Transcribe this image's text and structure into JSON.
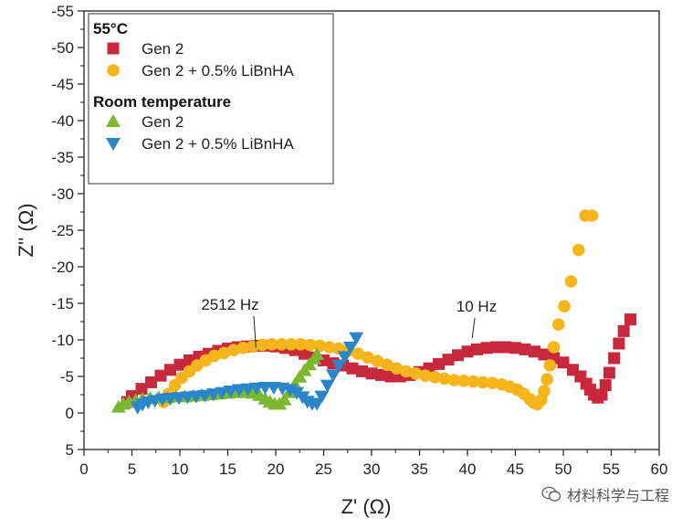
{
  "chart_data": {
    "type": "scatter",
    "xlabel": "Z' (Ω)",
    "ylabel": "Z'' (Ω)",
    "xlim": [
      0,
      60
    ],
    "ylim": [
      5,
      -55
    ],
    "xticks": [
      0,
      5,
      10,
      15,
      20,
      25,
      30,
      35,
      40,
      45,
      50,
      55,
      60
    ],
    "yticks": [
      5,
      0,
      -5,
      -10,
      -15,
      -20,
      -25,
      -30,
      -35,
      -40,
      -45,
      -50,
      -55
    ],
    "legend": {
      "groups": [
        {
          "title": "55°C",
          "entries": [
            {
              "series": 0,
              "label": "Gen 2"
            },
            {
              "series": 1,
              "label": "Gen 2 + 0.5% LiBnHA"
            }
          ]
        },
        {
          "title": "Room temperature",
          "entries": [
            {
              "series": 2,
              "label": "Gen 2"
            },
            {
              "series": 3,
              "label": "Gen 2 + 0.5% LiBnHA"
            }
          ]
        }
      ],
      "placement": "top-left"
    },
    "annotations": [
      {
        "text": "2512 Hz",
        "x": 18.5,
        "y": -9.2
      },
      {
        "text": "10 Hz",
        "x": 40.5,
        "y": -10.0
      }
    ],
    "series": [
      {
        "name": "Gen 2 (55°C)",
        "marker": "square",
        "color": "#c8283c",
        "x": [
          4.5,
          5.0,
          6.0,
          7.0,
          8.0,
          9.0,
          10.0,
          11.0,
          12.0,
          13.0,
          14.0,
          15.0,
          16.0,
          17.0,
          18.0,
          19.0,
          20.0,
          21.0,
          22.0,
          23.0,
          24.0,
          25.0,
          26.0,
          27.0,
          28.0,
          29.0,
          30.0,
          31.0,
          32.0,
          33.0,
          34.0,
          35.0,
          36.0,
          37.0,
          38.0,
          39.0,
          40.0,
          41.0,
          42.0,
          43.0,
          44.0,
          45.0,
          46.0,
          47.0,
          48.0,
          49.0,
          50.0,
          51.0,
          51.8,
          52.4,
          52.8,
          53.2,
          53.6,
          54.0,
          54.4,
          54.8,
          55.3,
          55.8,
          56.3,
          57.0
        ],
        "y": [
          -1.5,
          -2.3,
          -3.3,
          -4.2,
          -5.1,
          -5.9,
          -6.6,
          -7.2,
          -7.7,
          -8.1,
          -8.5,
          -8.8,
          -9.0,
          -9.1,
          -9.2,
          -9.2,
          -9.1,
          -8.9,
          -8.6,
          -8.1,
          -7.6,
          -7.2,
          -6.8,
          -6.5,
          -6.1,
          -5.7,
          -5.4,
          -5.2,
          -5.0,
          -5.0,
          -5.2,
          -5.6,
          -6.1,
          -6.7,
          -7.3,
          -7.9,
          -8.4,
          -8.7,
          -8.9,
          -9.0,
          -9.0,
          -8.9,
          -8.7,
          -8.4,
          -8.0,
          -7.5,
          -6.9,
          -5.9,
          -5.0,
          -4.0,
          -3.2,
          -2.5,
          -2.1,
          -2.5,
          -3.8,
          -5.5,
          -7.5,
          -9.5,
          -11.2,
          -12.8
        ]
      },
      {
        "name": "Gen 2 + 0.5% LiBnHA (55°C)",
        "marker": "circle",
        "color": "#f5b51b",
        "x": [
          8.3,
          8.8,
          9.5,
          10.2,
          11.0,
          11.8,
          12.7,
          13.6,
          14.6,
          15.6,
          16.6,
          17.6,
          18.6,
          19.6,
          20.6,
          21.6,
          22.6,
          23.6,
          24.6,
          25.6,
          26.6,
          27.6,
          28.6,
          29.6,
          30.6,
          31.6,
          32.6,
          33.6,
          34.6,
          35.6,
          36.6,
          37.6,
          38.6,
          39.6,
          40.6,
          41.6,
          42.6,
          43.6,
          44.4,
          45.2,
          45.9,
          46.5,
          46.9,
          47.3,
          47.7,
          48.0,
          48.3,
          48.6,
          49.0,
          49.5,
          50.1,
          50.8,
          51.6,
          52.3,
          53.0
        ],
        "y": [
          -1.5,
          -2.6,
          -3.8,
          -4.8,
          -5.7,
          -6.5,
          -7.2,
          -7.8,
          -8.2,
          -8.6,
          -8.9,
          -9.1,
          -9.3,
          -9.4,
          -9.4,
          -9.4,
          -9.4,
          -9.3,
          -9.2,
          -9.0,
          -8.8,
          -8.5,
          -8.1,
          -7.6,
          -7.1,
          -6.6,
          -6.1,
          -5.7,
          -5.4,
          -5.1,
          -4.9,
          -4.7,
          -4.5,
          -4.4,
          -4.3,
          -4.2,
          -4.1,
          -3.9,
          -3.6,
          -3.2,
          -2.6,
          -1.9,
          -1.4,
          -1.2,
          -1.8,
          -3.0,
          -4.6,
          -6.5,
          -9.0,
          -12.1,
          -14.6,
          -18.0,
          -22.3,
          -27.0,
          -27.0
        ]
      },
      {
        "name": "Gen 2 (Room temperature)",
        "marker": "triangle-up",
        "color": "#7cb82f",
        "x": [
          3.6,
          4.1,
          4.7,
          5.4,
          6.1,
          6.9,
          7.8,
          8.7,
          9.6,
          10.5,
          11.4,
          12.3,
          13.2,
          14.1,
          15.0,
          15.9,
          16.8,
          17.6,
          18.3,
          18.9,
          19.4,
          19.9,
          20.4,
          20.9,
          21.4,
          22.0,
          22.5,
          23.0,
          23.5,
          24.0,
          24.3
        ],
        "y": [
          -0.8,
          -1.2,
          -1.5,
          -1.7,
          -1.9,
          -2.0,
          -2.1,
          -2.1,
          -2.2,
          -2.2,
          -2.3,
          -2.4,
          -2.5,
          -2.6,
          -2.7,
          -2.8,
          -2.8,
          -2.7,
          -2.4,
          -1.9,
          -1.5,
          -1.2,
          -1.2,
          -1.8,
          -2.8,
          -3.9,
          -4.9,
          -5.8,
          -6.6,
          -7.4,
          -8.0
        ]
      },
      {
        "name": "Gen 2 + 0.5% LiBnHA (Room temperature)",
        "marker": "triangle-down",
        "color": "#2a86c8",
        "x": [
          5.6,
          6.1,
          6.7,
          7.4,
          8.2,
          9.0,
          9.9,
          10.8,
          11.7,
          12.6,
          13.5,
          14.4,
          15.3,
          16.2,
          17.1,
          18.0,
          18.9,
          19.8,
          20.7,
          21.5,
          22.2,
          22.8,
          23.3,
          23.8,
          24.3,
          24.8,
          25.4,
          26.0,
          26.6,
          27.2,
          27.8,
          28.4
        ],
        "y": [
          -0.8,
          -1.2,
          -1.5,
          -1.7,
          -1.9,
          -2.0,
          -2.1,
          -2.2,
          -2.3,
          -2.4,
          -2.6,
          -2.8,
          -3.0,
          -3.2,
          -3.3,
          -3.4,
          -3.5,
          -3.5,
          -3.4,
          -3.2,
          -2.8,
          -2.2,
          -1.6,
          -1.3,
          -1.3,
          -2.3,
          -3.8,
          -5.2,
          -6.5,
          -7.7,
          -9.0,
          -10.3
        ]
      }
    ]
  },
  "watermark": {
    "text": "材料科学与工程",
    "icon": "wechat-icon"
  }
}
